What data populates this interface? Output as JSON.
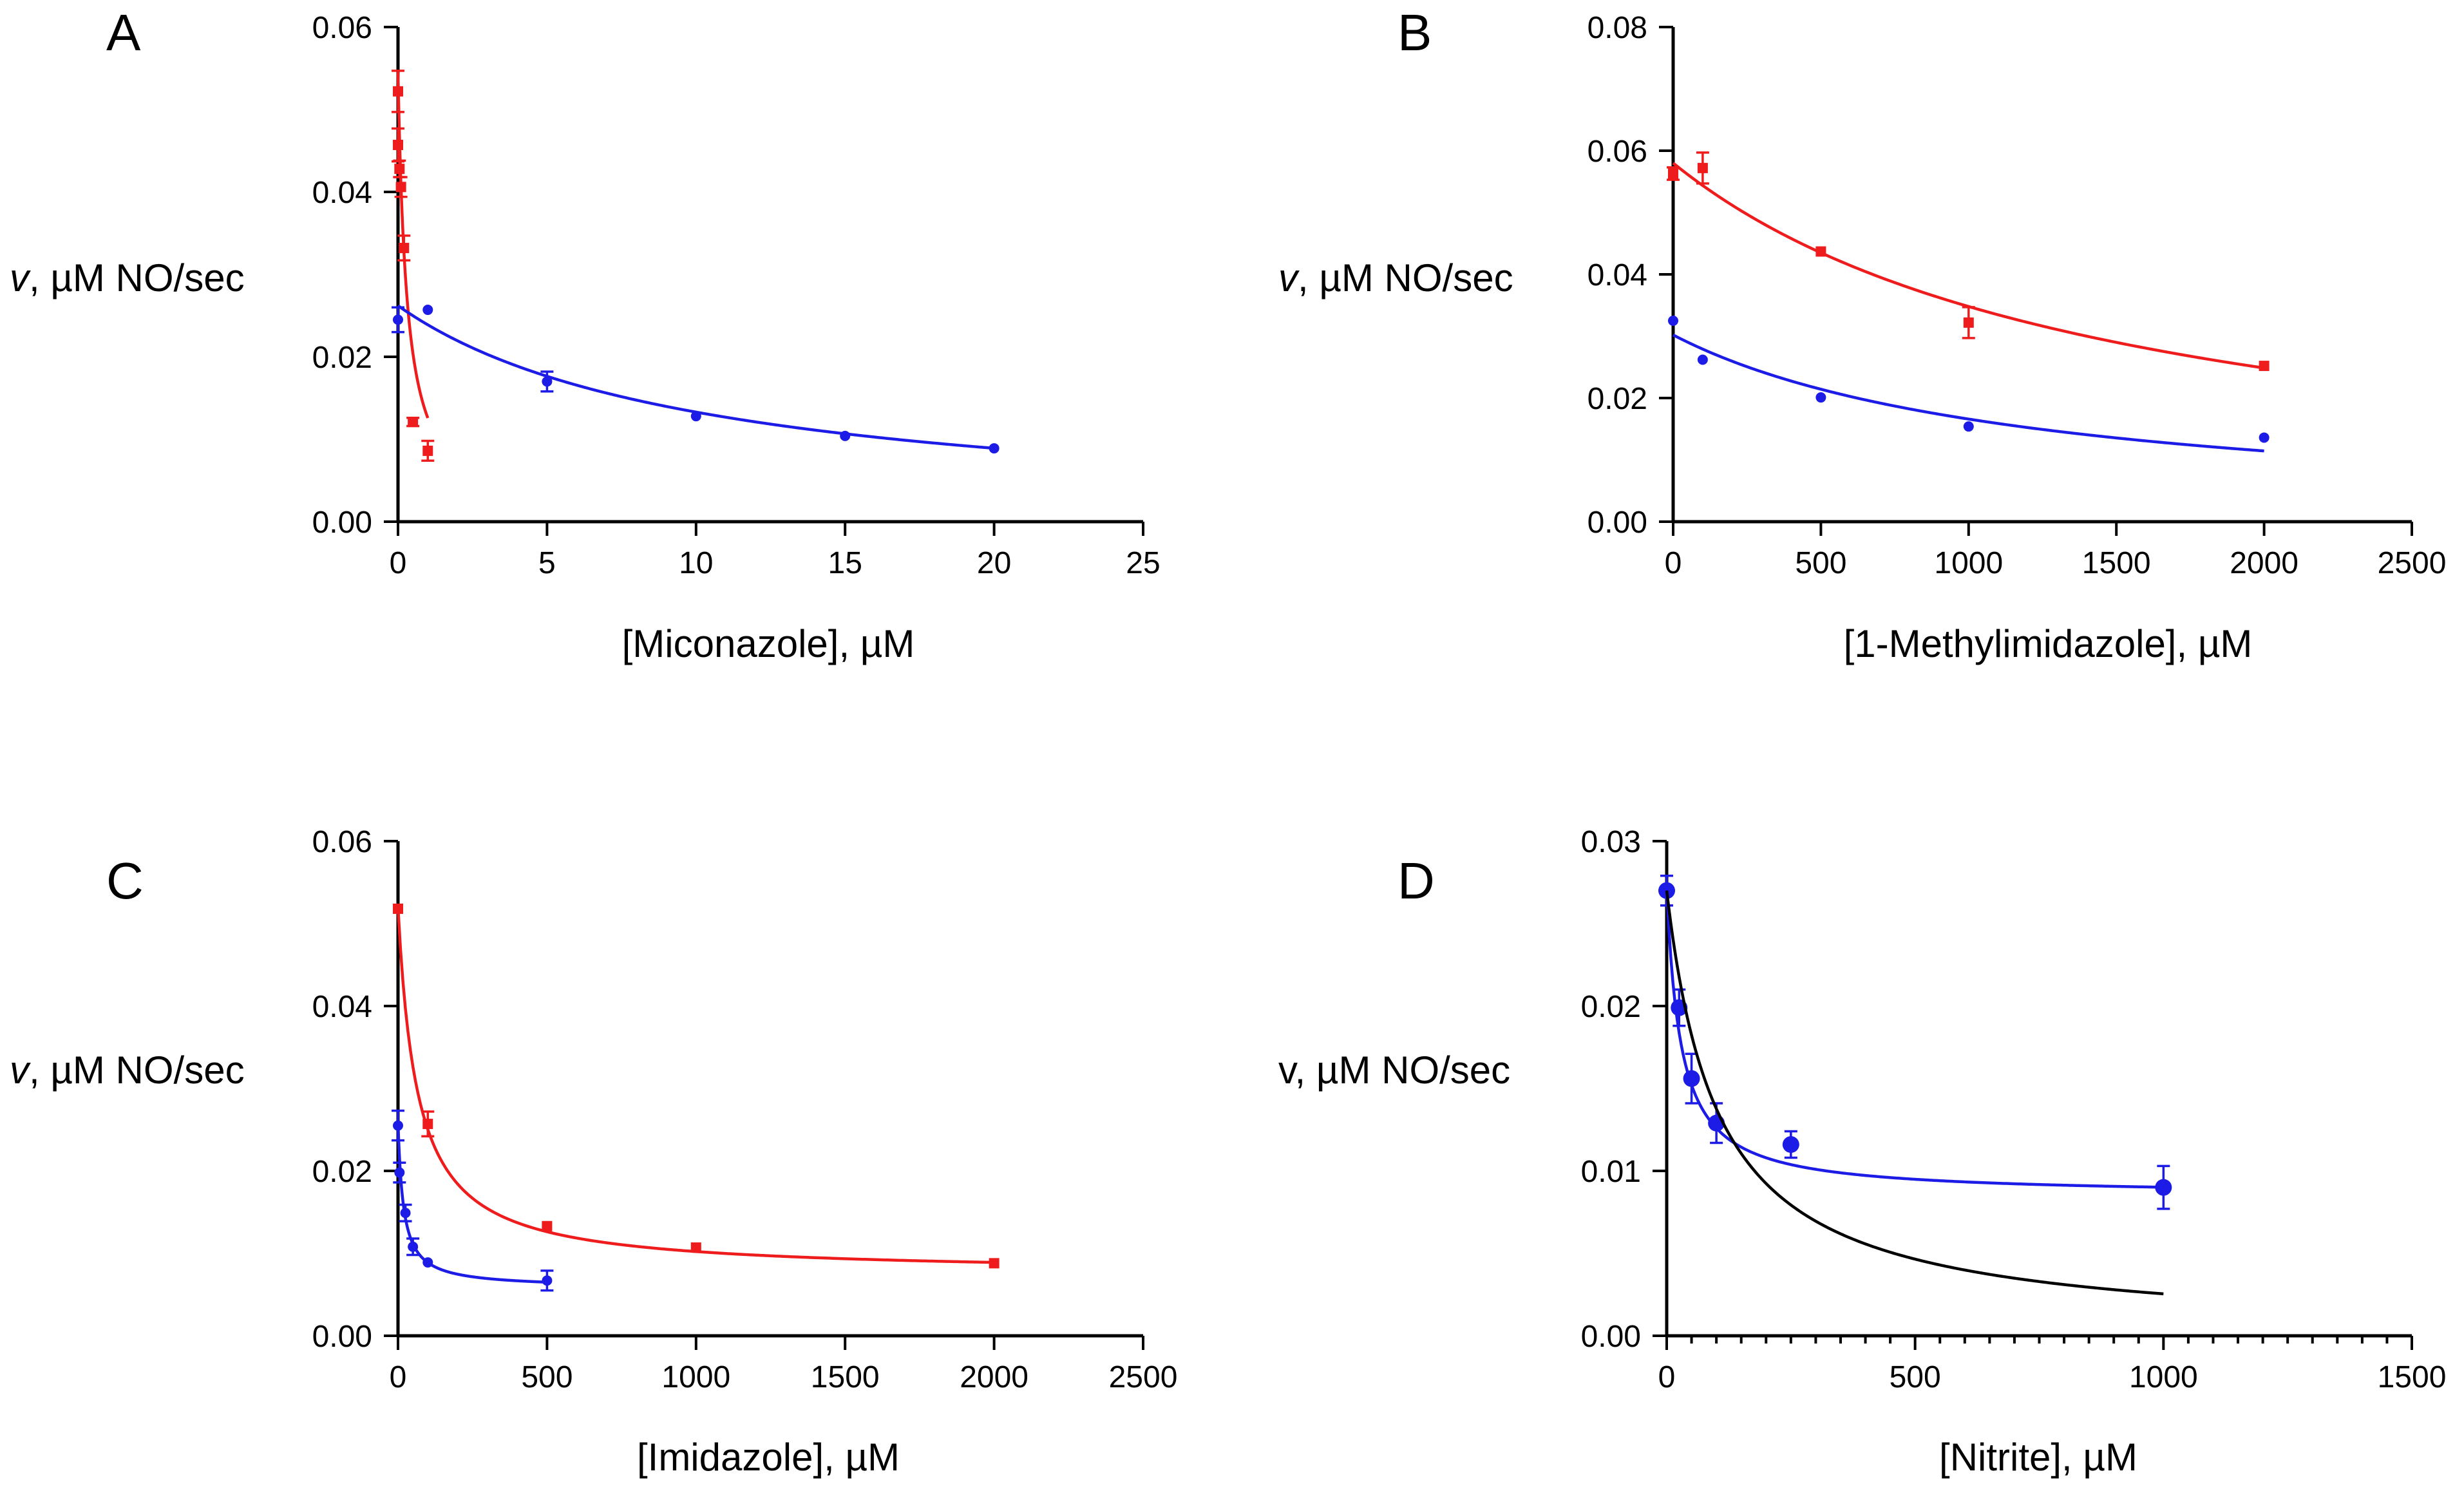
{
  "chart_data": [
    {
      "panel": "A",
      "type": "scatter",
      "xlabel": "[Miconazole], µM",
      "ylabel_italic": "v",
      "ylabel_rest": ", µM NO/sec",
      "xlim": [
        0,
        25
      ],
      "ylim": [
        0,
        0.06
      ],
      "xticks": [
        0,
        5,
        10,
        15,
        20,
        25
      ],
      "yticks": [
        0.0,
        0.02,
        0.04,
        0.06
      ],
      "xtick_labels": [
        "0",
        "5",
        "10",
        "15",
        "20",
        "25"
      ],
      "ytick_labels": [
        "0.00",
        "0.02",
        "0.04",
        "0.06"
      ],
      "series": [
        {
          "name": "red",
          "color": "#ee1c1c",
          "marker": "square",
          "points": [
            [
              0,
              0.0522,
              0.0025
            ],
            [
              0,
              0.0457,
              0.002
            ],
            [
              0.05,
              0.0428,
              0.001
            ],
            [
              0.1,
              0.0406,
              0.0012
            ],
            [
              0.2,
              0.0332,
              0.0015
            ],
            [
              0.5,
              0.0121,
              0.0005
            ],
            [
              1,
              0.0086,
              0.0012
            ]
          ],
          "fit": {
            "model": "inhibition",
            "v0": 0.0545,
            "k": 0.3,
            "x_from": 0,
            "x_to": 1
          }
        },
        {
          "name": "blue",
          "color": "#1c1ce6",
          "marker": "circle",
          "points": [
            [
              0,
              0.0245,
              0.0015
            ],
            [
              1,
              0.0257,
              0
            ],
            [
              5,
              0.017,
              0.0012
            ],
            [
              10,
              0.0128,
              0
            ],
            [
              15,
              0.0104,
              0
            ],
            [
              20,
              0.0089,
              0
            ]
          ],
          "fit": {
            "model": "inhibition",
            "v0": 0.0262,
            "k": 10.3,
            "x_from": 0,
            "x_to": 20
          }
        }
      ]
    },
    {
      "panel": "B",
      "type": "scatter",
      "xlabel": "[1-Methylimidazole], µM",
      "ylabel_italic": "v",
      "ylabel_rest": ", µM NO/sec",
      "xlim": [
        0,
        2500
      ],
      "ylim": [
        0,
        0.08
      ],
      "xticks": [
        0,
        500,
        1000,
        1500,
        2000,
        2500
      ],
      "yticks": [
        0.0,
        0.02,
        0.04,
        0.06,
        0.08
      ],
      "xtick_labels": [
        "0",
        "500",
        "1000",
        "1500",
        "2000",
        "2500"
      ],
      "ytick_labels": [
        "0.00",
        "0.02",
        "0.04",
        "0.06",
        "0.08"
      ],
      "series": [
        {
          "name": "red",
          "color": "#ee1c1c",
          "marker": "square",
          "points": [
            [
              0,
              0.0563,
              0.001
            ],
            [
              100,
              0.0572,
              0.0025
            ],
            [
              500,
              0.0437,
              0
            ],
            [
              1000,
              0.0322,
              0.0025
            ],
            [
              2000,
              0.0252,
              0
            ]
          ],
          "fit": {
            "model": "inhibition",
            "v0": 0.058,
            "k": 1500,
            "x_from": 0,
            "x_to": 2000
          }
        },
        {
          "name": "blue",
          "color": "#1c1ce6",
          "marker": "circle",
          "points": [
            [
              0,
              0.0325,
              0
            ],
            [
              100,
              0.0262,
              0
            ],
            [
              500,
              0.0201,
              0
            ],
            [
              1000,
              0.0154,
              0
            ],
            [
              2000,
              0.0136,
              0
            ]
          ],
          "fit": {
            "model": "inhibition",
            "v0": 0.0302,
            "k": 1220,
            "x_from": 0,
            "x_to": 2000
          }
        }
      ]
    },
    {
      "panel": "C",
      "type": "scatter",
      "xlabel": "[Imidazole], µM",
      "ylabel_italic": "v",
      "ylabel_rest": ", µM NO/sec",
      "xlim": [
        0,
        2500
      ],
      "ylim": [
        0,
        0.06
      ],
      "xticks": [
        0,
        500,
        1000,
        1500,
        2000,
        2500
      ],
      "yticks": [
        0.0,
        0.02,
        0.04,
        0.06
      ],
      "xtick_labels": [
        "0",
        "500",
        "1000",
        "1500",
        "2000",
        "2500"
      ],
      "ytick_labels": [
        "0.00",
        "0.02",
        "0.04",
        "0.06"
      ],
      "series": [
        {
          "name": "red",
          "color": "#ee1c1c",
          "marker": "square",
          "points": [
            [
              0,
              0.0518,
              0
            ],
            [
              100,
              0.0257,
              0.0015
            ],
            [
              500,
              0.0133,
              0
            ],
            [
              1000,
              0.0107,
              0
            ],
            [
              2000,
              0.0088,
              0
            ]
          ],
          "fit": {
            "model": "partial",
            "v0": 0.052,
            "vinf": 0.0075,
            "k": 65,
            "x_from": 0,
            "x_to": 2000
          }
        },
        {
          "name": "blue",
          "color": "#1c1ce6",
          "marker": "circle",
          "points": [
            [
              0,
              0.0255,
              0.0018
            ],
            [
              5,
              0.0198,
              0.0012
            ],
            [
              25,
              0.0149,
              0.001
            ],
            [
              50,
              0.0108,
              0.001
            ],
            [
              100,
              0.0089,
              0
            ],
            [
              500,
              0.0067,
              0.0012
            ]
          ],
          "fit": {
            "model": "partial",
            "v0": 0.026,
            "vinf": 0.0058,
            "k": 18,
            "x_from": 0,
            "x_to": 500
          }
        }
      ]
    },
    {
      "panel": "D",
      "type": "scatter",
      "xlabel": "[Nitrite], µM",
      "ylabel_italic": "",
      "ylabel_rest": "v, µM NO/sec",
      "xlim": [
        0,
        1500
      ],
      "ylim": [
        0,
        0.03
      ],
      "xticks": [
        0,
        500,
        1000,
        1500
      ],
      "xminor_step": 50,
      "yticks": [
        0.0,
        0.01,
        0.02,
        0.03
      ],
      "xtick_labels": [
        "0",
        "500",
        "1000",
        "1500"
      ],
      "ytick_labels": [
        "0.00",
        "0.01",
        "0.02",
        "0.03"
      ],
      "series": [
        {
          "name": "blue",
          "color": "#1c1ce6",
          "marker": "big-circle",
          "points": [
            [
              0,
              0.027,
              0.0009
            ],
            [
              25,
              0.0199,
              0.0011
            ],
            [
              50,
              0.0156,
              0.0015
            ],
            [
              100,
              0.0129,
              0.0012
            ],
            [
              250,
              0.0116,
              0.0008
            ],
            [
              1000,
              0.009,
              0.0013
            ]
          ],
          "fit": {
            "model": "partial",
            "v0": 0.0272,
            "vinf": 0.0085,
            "k": 28,
            "x_from": 0,
            "x_to": 1000
          }
        },
        {
          "name": "black",
          "color": "#000000",
          "marker": "none",
          "points": [],
          "fit": {
            "model": "inhibition",
            "v0": 0.027,
            "k": 104,
            "x_from": 0,
            "x_to": 1000
          }
        }
      ]
    }
  ]
}
